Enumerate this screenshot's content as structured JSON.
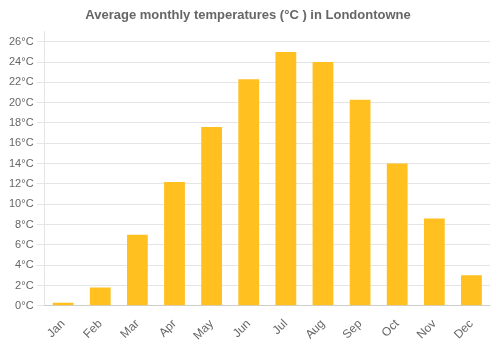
{
  "chart_data": {
    "type": "bar",
    "title": "Average monthly temperatures (°C ) in Londontowne",
    "categories": [
      "Jan",
      "Feb",
      "Mar",
      "Apr",
      "May",
      "Jun",
      "Jul",
      "Aug",
      "Sep",
      "Oct",
      "Nov",
      "Dec"
    ],
    "values": [
      0.3,
      1.8,
      7.0,
      12.2,
      17.6,
      22.3,
      25.0,
      24.0,
      20.3,
      14.0,
      8.6,
      3.0
    ],
    "color": "#FFC020",
    "ylim": [
      0,
      27
    ],
    "yticks": [
      {
        "value": 0,
        "label": "0°C"
      },
      {
        "value": 2,
        "label": "2°C"
      },
      {
        "value": 4,
        "label": "4°C"
      },
      {
        "value": 6,
        "label": "6°C"
      },
      {
        "value": 8,
        "label": "8°C"
      },
      {
        "value": 10,
        "label": "10°C"
      },
      {
        "value": 12,
        "label": "12°C"
      },
      {
        "value": 14,
        "label": "14°C"
      },
      {
        "value": 16,
        "label": "16°C"
      },
      {
        "value": 18,
        "label": "18°C"
      },
      {
        "value": 20,
        "label": "20°C"
      },
      {
        "value": 22,
        "label": "22°C"
      },
      {
        "value": 24,
        "label": "24°C"
      },
      {
        "value": 26,
        "label": "26°C"
      }
    ],
    "grid": true
  }
}
